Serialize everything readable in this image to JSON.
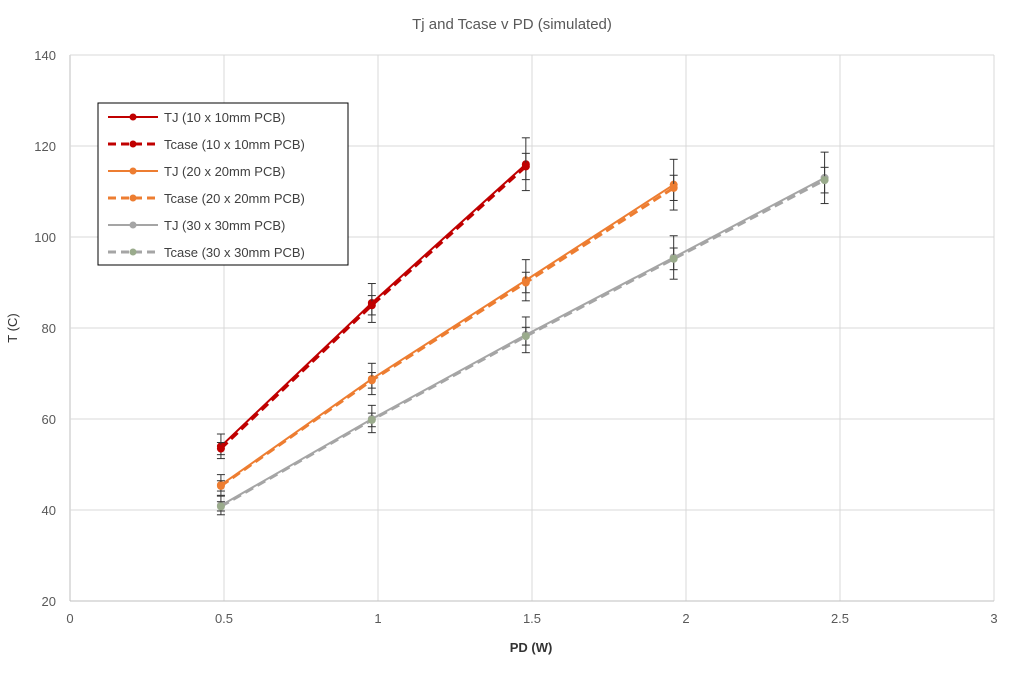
{
  "chart_data": {
    "type": "line",
    "title": "Tj and Tcase v PD (simulated)",
    "xlabel": "PD (W)",
    "ylabel": "T (C)",
    "xlim": [
      0,
      3
    ],
    "ylim": [
      20,
      140
    ],
    "xticks": [
      "0",
      "0.5",
      "1",
      "1.5",
      "2",
      "2.5",
      "3"
    ],
    "yticks": [
      "20",
      "40",
      "60",
      "80",
      "100",
      "120",
      "140"
    ],
    "grid": true,
    "legend_position": "top-left",
    "series": [
      {
        "name": "TJ (10 x 10mm PCB)",
        "color": "#c00000",
        "dashed": false,
        "x": [
          0.49,
          0.98,
          1.48
        ],
        "y": [
          54,
          85.5,
          116
        ],
        "error_pct": 5
      },
      {
        "name": "Tcase (10 x 10mm PCB)",
        "color": "#c00000",
        "dashed": true,
        "x": [
          0.49,
          0.98,
          1.48
        ],
        "y": [
          53.5,
          85,
          115.5
        ],
        "error_pct": 2.5
      },
      {
        "name": "TJ (20 x 20mm PCB)",
        "color": "#ed7d31",
        "dashed": false,
        "x": [
          0.49,
          0.98,
          1.48,
          1.96
        ],
        "y": [
          45.5,
          68.8,
          90.5,
          111.5
        ],
        "error_pct": 5
      },
      {
        "name": "Tcase (20 x 20mm PCB)",
        "color": "#ed7d31",
        "dashed": true,
        "x": [
          0.49,
          0.98,
          1.48,
          1.96
        ],
        "y": [
          45.3,
          68.5,
          90,
          110.8
        ],
        "error_pct": 2.5
      },
      {
        "name": "TJ (30 x 30mm PCB)",
        "color": "#a5a5a5",
        "dashed": false,
        "x": [
          0.49,
          0.98,
          1.48,
          1.96,
          2.45
        ],
        "y": [
          41,
          60,
          78.5,
          95.5,
          113
        ],
        "error_pct": 5
      },
      {
        "name": "Tcase (30 x 30mm PCB)",
        "color": "#a5a5a5",
        "marker_color": "#9aab8c",
        "dashed": true,
        "x": [
          0.49,
          0.98,
          1.48,
          1.96,
          2.45
        ],
        "y": [
          40.8,
          59.8,
          78.2,
          95.2,
          112.5
        ],
        "error_pct": 2.5
      }
    ]
  }
}
